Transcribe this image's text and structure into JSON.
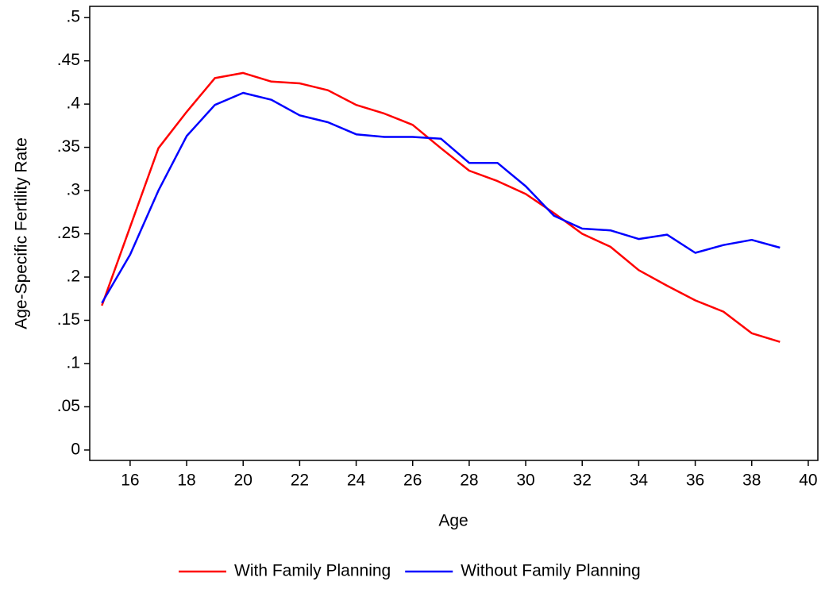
{
  "chart_data": {
    "type": "line",
    "x_label": "Age",
    "y_label": "Age-Specific Fertility Rate",
    "x": [
      15,
      16,
      17,
      18,
      19,
      20,
      21,
      22,
      23,
      24,
      25,
      26,
      27,
      28,
      29,
      30,
      31,
      32,
      33,
      34,
      35,
      36,
      37,
      38,
      39
    ],
    "series": [
      {
        "name": "With Family Planning",
        "color": "#ff0000",
        "values": [
          0.167,
          0.258,
          0.349,
          0.391,
          0.43,
          0.436,
          0.426,
          0.424,
          0.416,
          0.399,
          0.389,
          0.376,
          0.349,
          0.323,
          0.311,
          0.296,
          0.274,
          0.25,
          0.235,
          0.208,
          0.19,
          0.173,
          0.16,
          0.135,
          0.125
        ]
      },
      {
        "name": "Without Family Planning",
        "color": "#0000ff",
        "values": [
          0.17,
          0.226,
          0.3,
          0.363,
          0.399,
          0.413,
          0.405,
          0.387,
          0.379,
          0.365,
          0.362,
          0.362,
          0.36,
          0.332,
          0.332,
          0.305,
          0.271,
          0.256,
          0.254,
          0.244,
          0.249,
          0.228,
          0.237,
          0.243,
          0.234
        ]
      }
    ],
    "xlim": [
      14.57,
      40.34
    ],
    "xticks": [
      16,
      18,
      20,
      22,
      24,
      26,
      28,
      30,
      32,
      34,
      36,
      38,
      40
    ],
    "ylim": [
      -0.012,
      0.513
    ],
    "yticks": [
      0,
      {
        "value": 0.05,
        "label": ".05"
      },
      {
        "value": 0.1,
        "label": ".1"
      },
      {
        "value": 0.15,
        "label": ".15"
      },
      {
        "value": 0.2,
        "label": ".2"
      },
      {
        "value": 0.25,
        "label": ".25"
      },
      {
        "value": 0.3,
        "label": ".3"
      },
      {
        "value": 0.35,
        "label": ".35"
      },
      {
        "value": 0.4,
        "label": ".4"
      },
      {
        "value": 0.45,
        "label": ".45"
      },
      {
        "value": 0.5,
        "label": ".5"
      }
    ],
    "legend": "bottom"
  }
}
